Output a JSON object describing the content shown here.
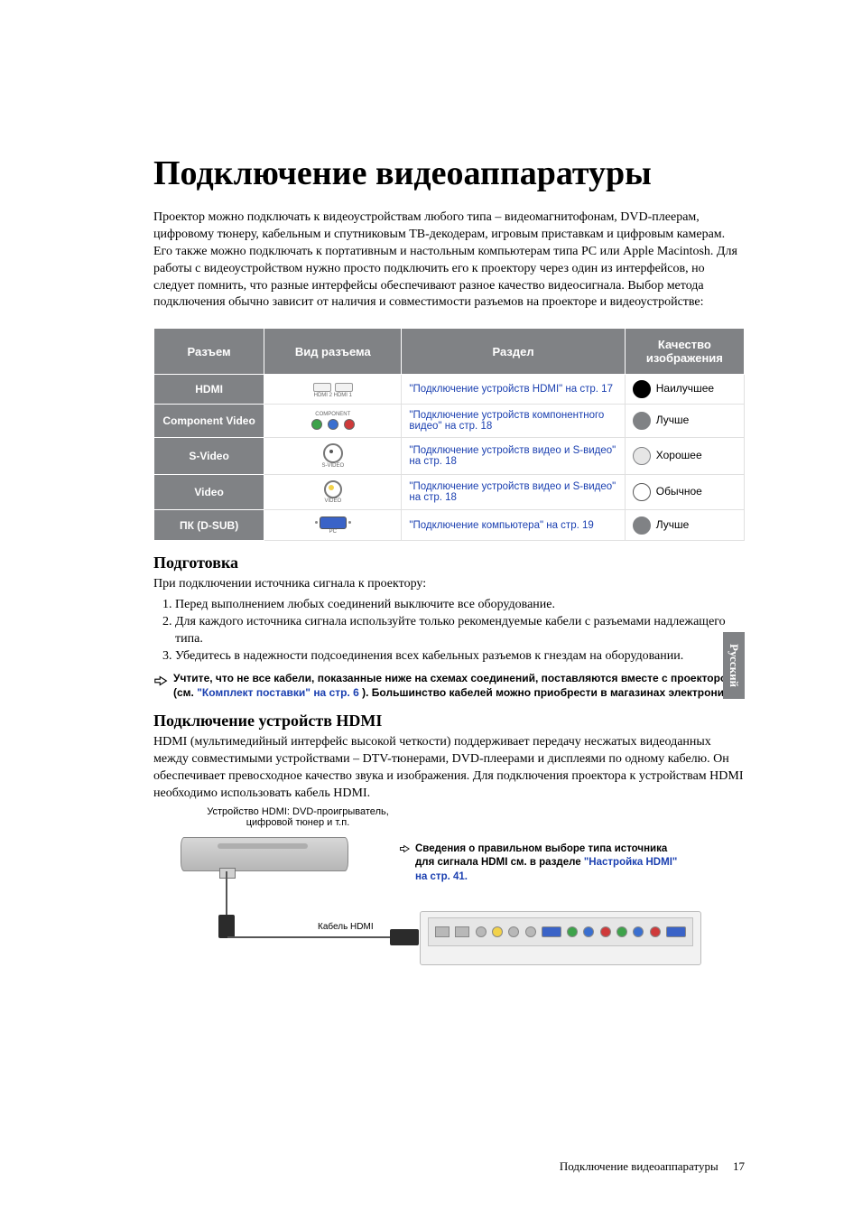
{
  "title": "Подключение видеоаппаратуры",
  "intro": "Проектор можно подключать к видеоустройствам любого типа – видеомагнитофонам, DVD-плеерам, цифровому тюнеру, кабельным и спутниковым ТВ-декодерам, игровым приставкам и цифровым камерам. Его также можно подключать к портативным и настольным компьютерам типа PC или Apple Macintosh. Для работы с видеоустройством нужно просто подключить его к проектору через один из интерфейсов, но следует помнить, что разные интерфейсы обеспечивают разное качество видеосигнала. Выбор метода подключения обычно зависит от наличия и совместимости разъемов на проекторе и видеоустройстве:",
  "table": {
    "headers": {
      "c1": "Разъем",
      "c2": "Вид разъема",
      "c3": "Раздел",
      "c4": "Качество изображения"
    },
    "rows": [
      {
        "name": "HDMI",
        "icon_caption": "HDMI 2   HDMI 1",
        "section": "\"Подключение устройств HDMI\" на стр. 17",
        "quality": "Наилучшее",
        "dot_bg": "#000000",
        "dot_border": "#000000",
        "icon_type": "hdmi"
      },
      {
        "name": "Component Video",
        "icon_caption": "COMPONENT",
        "section": "\"Подключение устройств компонентного видео\" на стр. 18",
        "quality": "Лучше",
        "dot_bg": "#808285",
        "dot_border": "#808285",
        "icon_type": "component"
      },
      {
        "name": "S-Video",
        "icon_caption": "S-VIDEO",
        "section": "\"Подключение устройств видео и S-видео\" на стр. 18",
        "quality": "Хорошее",
        "dot_bg": "#e6e6e6",
        "dot_border": "#808285",
        "icon_type": "svideo"
      },
      {
        "name": "Video",
        "icon_caption": "VIDEO",
        "section": "\"Подключение устройств видео и S-видео\" на стр. 18",
        "quality": "Обычное",
        "dot_bg": "#ffffff",
        "dot_border": "#555555",
        "icon_type": "video"
      },
      {
        "name": "ПК (D-SUB)",
        "icon_caption": "PC",
        "section": "\"Подключение компьютера\" на стр. 19",
        "quality": "Лучше",
        "dot_bg": "#808285",
        "dot_border": "#808285",
        "icon_type": "vga"
      }
    ]
  },
  "prep_heading": "Подготовка",
  "prep_intro": "При подключении источника сигнала к проектору:",
  "prep_items": [
    "Перед выполнением любых соединений выключите все оборудование.",
    "Для каждого источника сигнала используйте только рекомендуемые кабели с разъемами надлежащего типа.",
    "Убедитесь в надежности подсоединения всех кабельных разъемов к гнездам на оборудовании."
  ],
  "note1_a": "Учтите, что не все кабели, показанные ниже на схемах соединений, поставляются вместе с проектором (см. ",
  "note1_link": "\"Комплект поставки\" на стр. 6",
  "note1_b": "). Большинство кабелей можно приобрести в магазинах электроники.",
  "hdmi_heading": "Подключение устройств HDMI",
  "hdmi_para": "HDMI (мультимедийный интерфейс высокой четкости) поддерживает передачу несжатых видеоданных между совместимыми устройствами – DTV-тюнерами, DVD-плеерами и дисплеями по одному кабелю. Он обеспечивает превосходное качество звука и изображения. Для подключения проектора к устройствам HDMI необходимо использовать кабель HDMI.",
  "diagram": {
    "device_label": "Устройство HDMI: DVD-проигрыватель, цифровой тюнер и т.п.",
    "cable_label": "Кабель HDMI",
    "info_a": "Сведения о правильном выборе типа источника для сигнала HDMI см. в разделе ",
    "info_link": "\"Настройка HDMI\" на стр. 41."
  },
  "side_tab": "Русский",
  "footer_text": "Подключение видеоаппаратуры",
  "footer_page": "17",
  "colors": {
    "header_bg": "#808285",
    "link": "#1a3fb0",
    "comp_green": "#3da24a",
    "comp_blue": "#3a6fd0",
    "comp_red": "#cf3a3a",
    "rca_yellow": "#f2d24a",
    "vga_blue": "#3a63c7"
  }
}
